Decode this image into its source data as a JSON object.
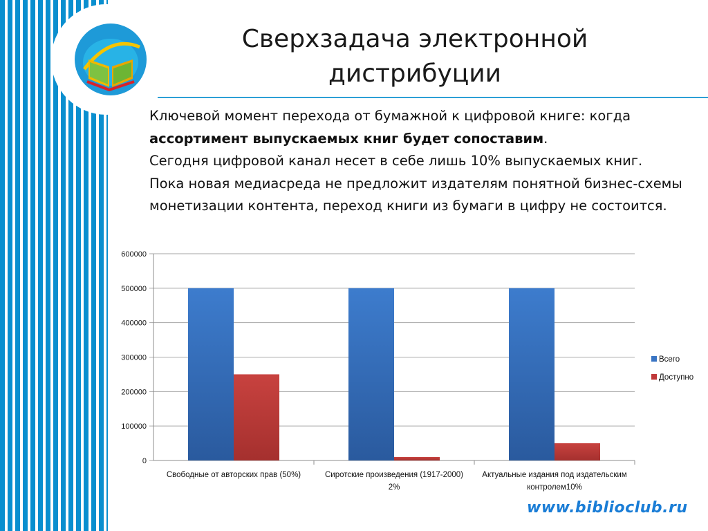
{
  "slide": {
    "title": "Сверхзадача электронной дистрибуции",
    "paragraphs": {
      "p1_a": "Ключевой момент перехода от бумажной к цифровой книге: когда ",
      "p1_b": "ассортимент выпускаемых книг будет сопоставим",
      "p1_c": ".",
      "p2": "Сегодня цифровой канал несет в себе лишь 10% выпускаемых книг.",
      "p3": "Пока новая медиасреда не предложит издателям понятной бизнес-схемы монетизации контента, переход книги из бумаги в цифру не состоится."
    },
    "footer_url": "www.biblioclub.ru"
  },
  "colors": {
    "stripe_blue": "#0a8fcf",
    "series_all": "#3a75c4",
    "series_available": "#c0393a"
  },
  "chart_data": {
    "type": "bar",
    "categories": [
      "Свободные от авторских прав (50%)",
      "Сиротские произведения (1917-2000) 2%",
      "Актуальные издания под издательским контролем10%"
    ],
    "series": [
      {
        "name": "Всего",
        "values": [
          500000,
          500000,
          500000
        ]
      },
      {
        "name": "Доступно",
        "values": [
          250000,
          10000,
          50000
        ]
      }
    ],
    "ylim": [
      0,
      600000
    ],
    "yticks": [
      0,
      100000,
      200000,
      300000,
      400000,
      500000,
      600000
    ],
    "grid": true,
    "legend": "right"
  }
}
